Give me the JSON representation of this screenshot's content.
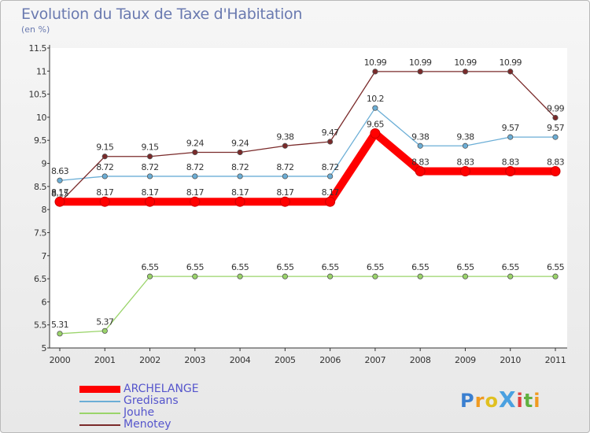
{
  "header": {
    "title": "Evolution du Taux de Taxe d'Habitation",
    "subtitle": "(en %)"
  },
  "logo": {
    "text": "ProXiti"
  },
  "chart_data": {
    "type": "line",
    "title": "Evolution du Taux de Taxe d'Habitation",
    "subtitle": "(en %)",
    "xlabel": "",
    "ylabel": "",
    "x": [
      "2000",
      "2001",
      "2002",
      "2003",
      "2004",
      "2005",
      "2006",
      "2007",
      "2008",
      "2009",
      "2010",
      "2011"
    ],
    "ylim": [
      5,
      11.5
    ],
    "yticks": [
      "5",
      "5.5",
      "6",
      "6.5",
      "7",
      "7.5",
      "8",
      "8.5",
      "9",
      "9.5",
      "10",
      "10.5",
      "11",
      "11.5"
    ],
    "grid": false,
    "legend_position": "bottom-left",
    "series": [
      {
        "name": "ARCHELANGE",
        "color": "#ff0000",
        "emphasis": true,
        "values": [
          8.17,
          8.17,
          8.17,
          8.17,
          8.17,
          8.17,
          8.17,
          9.65,
          8.83,
          8.83,
          8.83,
          8.83
        ],
        "labels": [
          "8.17",
          "8.17",
          "8.17",
          "8.17",
          "8.17",
          "8.17",
          "8.17",
          "9.65",
          "8.83",
          "8.83",
          "8.83",
          "8.83"
        ]
      },
      {
        "name": "Gredisans",
        "color": "#6baed6",
        "values": [
          8.63,
          8.72,
          8.72,
          8.72,
          8.72,
          8.72,
          8.72,
          10.2,
          9.38,
          9.38,
          9.57,
          9.57
        ],
        "labels": [
          "8.63",
          "8.72",
          "8.72",
          "8.72",
          "8.72",
          "8.72",
          "8.72",
          "10.2",
          "9.38",
          "9.38",
          "9.57",
          "9.57"
        ]
      },
      {
        "name": "Jouhe",
        "color": "#9ad46a",
        "values": [
          5.31,
          5.37,
          6.55,
          6.55,
          6.55,
          6.55,
          6.55,
          6.55,
          6.55,
          6.55,
          6.55,
          6.55
        ],
        "labels": [
          "5.31",
          "5.37",
          "6.55",
          "6.55",
          "6.55",
          "6.55",
          "6.55",
          "6.55",
          "6.55",
          "6.55",
          "6.55",
          "6.55"
        ]
      },
      {
        "name": "Menotey",
        "color": "#7a2a2a",
        "values": [
          8.15,
          9.15,
          9.15,
          9.24,
          9.24,
          9.38,
          9.47,
          10.99,
          10.99,
          10.99,
          10.99,
          9.99
        ],
        "labels": [
          "8.15",
          "9.15",
          "9.15",
          "9.24",
          "9.24",
          "9.38",
          "9.47",
          "10.99",
          "10.99",
          "10.99",
          "10.99",
          "9.99"
        ]
      }
    ]
  }
}
